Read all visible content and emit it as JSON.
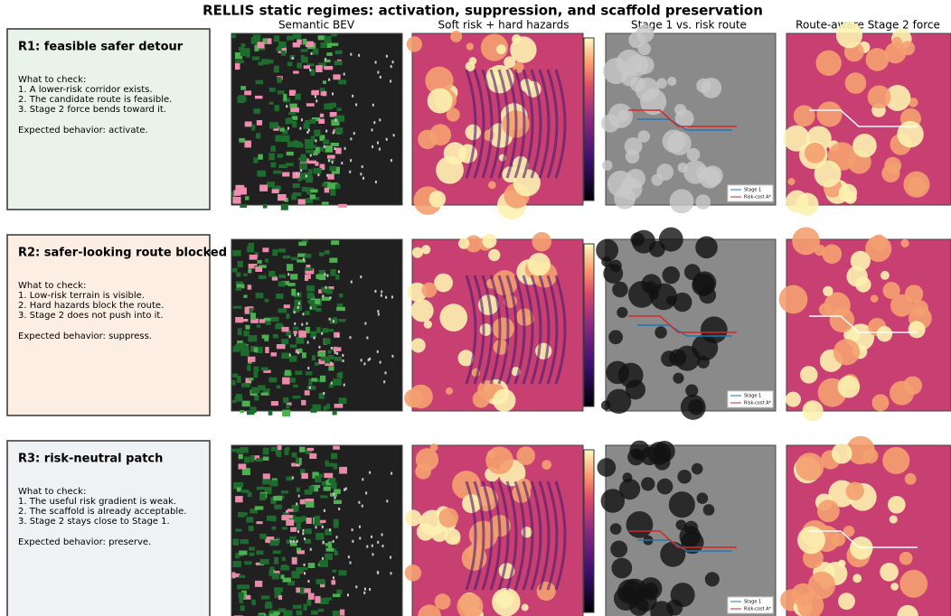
{
  "title": "RELLIS static regimes: activation, suppression, and scaffold preservation",
  "columns": [
    "Semantic BEV",
    "Soft risk + hard hazards",
    "Stage 1 vs. risk route",
    "Route-aware Stage 2 force"
  ],
  "legend": [
    "Stage 1",
    "Risk-cost A*"
  ],
  "rows": [
    {
      "title": "R1: feasible safer detour",
      "check_heading": "What to check:",
      "checks": [
        "1. A lower-risk corridor exists.",
        "2. The candidate route is feasible.",
        "3. Stage 2 force bends toward it."
      ],
      "expected": "Expected behavior: activate."
    },
    {
      "title": "R2: safer-looking route blocked",
      "check_heading": "What to check:",
      "checks": [
        "1. Low-risk terrain is visible.",
        "2. Hard hazards block the route.",
        "3. Stage 2 does not push into it."
      ],
      "expected": "Expected behavior: suppress."
    },
    {
      "title": "R3: risk-neutral patch",
      "check_heading": "What to check:",
      "checks": [
        "1. The useful risk gradient is weak.",
        "2. The scaffold is already acceptable.",
        "3. Stage 2 stays close to Stage 1."
      ],
      "expected": "Expected behavior: preserve."
    }
  ]
}
